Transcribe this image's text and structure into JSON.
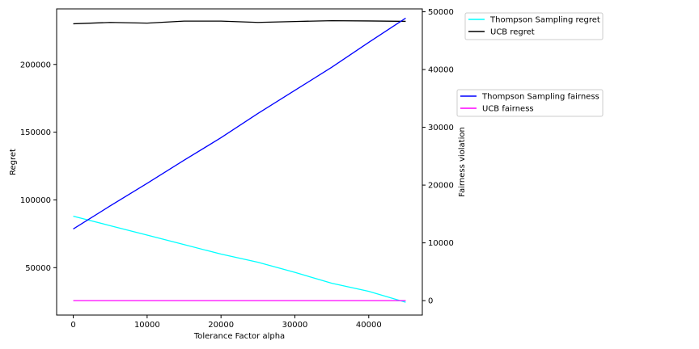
{
  "chart_data": {
    "type": "line",
    "title": "",
    "xlabel": "Tolerance Factor alpha",
    "ylabel_left": "Regret",
    "ylabel_right": "Fairness violation",
    "x": [
      0,
      5000,
      10000,
      15000,
      20000,
      25000,
      30000,
      35000,
      40000,
      45000
    ],
    "xlim": [
      -2250,
      47250
    ],
    "xticks": [
      0,
      10000,
      20000,
      30000,
      40000
    ],
    "ylim_left": [
      15000,
      241000
    ],
    "yticks_left": [
      50000,
      100000,
      150000,
      200000
    ],
    "ylim_right": [
      -2500,
      50500
    ],
    "yticks_right": [
      0,
      10000,
      20000,
      30000,
      40000,
      50000
    ],
    "grid": false,
    "series_left": [
      {
        "name": "Thompson Sampling regret",
        "color": "#00ffff",
        "values": [
          88000,
          81000,
          74000,
          67000,
          60000,
          54000,
          46500,
          38500,
          32500,
          24500
        ]
      },
      {
        "name": "UCB regret",
        "color": "#000000",
        "values": [
          230000,
          231000,
          230500,
          232000,
          232000,
          231000,
          231700,
          232300,
          232100,
          231800
        ]
      }
    ],
    "series_right": [
      {
        "name": "Thompson Sampling fairness",
        "color": "#0000ff",
        "values": [
          12400,
          16400,
          20300,
          24300,
          28200,
          32400,
          36400,
          40400,
          44700,
          48900
        ]
      },
      {
        "name": "UCB fairness",
        "color": "#ff00ff",
        "values": [
          0,
          0,
          0,
          0,
          0,
          0,
          0,
          0,
          0,
          0
        ]
      }
    ],
    "legends": [
      {
        "placement": "upper-right-outside",
        "entries": [
          "Thompson Sampling regret",
          "UCB regret"
        ]
      },
      {
        "placement": "center-right-outside",
        "entries": [
          "Thompson Sampling fairness",
          "UCB fairness"
        ]
      }
    ]
  }
}
